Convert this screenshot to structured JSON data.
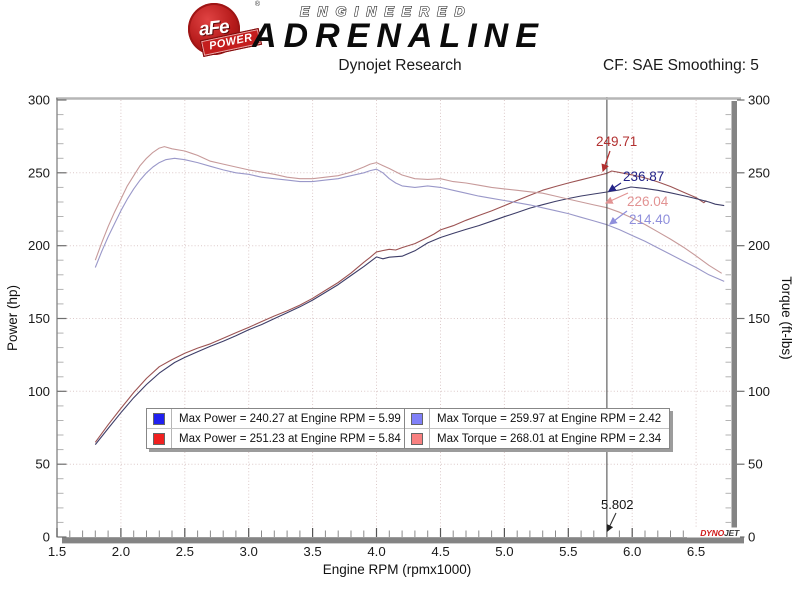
{
  "header": {
    "logo": {
      "afe": "aFe",
      "reg": "®",
      "power": "POWER"
    },
    "brand_top": "ENGINEERED",
    "brand_main": "ADRENALINE",
    "chart_title": "Dynojet Research",
    "smoothing": "CF: SAE Smoothing: 5"
  },
  "legend": {
    "power": [
      {
        "color": "#2020f0",
        "text": "Max Power = 240.27 at Engine RPM = 5.99"
      },
      {
        "color": "#f02020",
        "text": "Max Power = 251.23 at Engine RPM = 5.84"
      }
    ],
    "torque": [
      {
        "color": "#8080f8",
        "text": "Max Torque = 259.97 at Engine RPM = 2.42"
      },
      {
        "color": "#f88080",
        "text": "Max Torque = 268.01 at Engine RPM = 2.34"
      }
    ]
  },
  "footer_brand": {
    "dyno": "DYNO",
    "jet": "JET"
  },
  "chart_data": {
    "type": "line",
    "title": "Dynojet Research",
    "xlabel": "Engine RPM (rpmx1000)",
    "ylabel_left": "Power (hp)",
    "ylabel_right": "Torque (ft-lbs)",
    "x_range": [
      1.5,
      6.82
    ],
    "y_range": [
      0,
      300
    ],
    "x_major_ticks": [
      1.5,
      2.0,
      2.5,
      3.0,
      3.5,
      4.0,
      4.5,
      5.0,
      5.5,
      6.0,
      6.5
    ],
    "x_minor_step": 0.1,
    "y_major_step": 50,
    "y_minor_step": 10,
    "grid_style": "dotted",
    "legend_position": "bottom-center",
    "cursor": {
      "rpm": 5.802,
      "label": "5.802"
    },
    "annotations": [
      {
        "text": "249.71",
        "color": "#b23030",
        "value": 249.71
      },
      {
        "text": "236.87",
        "color": "#232388",
        "value": 236.87
      },
      {
        "text": "226.04",
        "color": "#e29393",
        "value": 226.04
      },
      {
        "text": "214.40",
        "color": "#8f8fdc",
        "value": 214.4
      }
    ],
    "series": [
      {
        "name": "power-red",
        "axis": "left",
        "color": "#9c5353",
        "max": {
          "value": 251.23,
          "rpm": 5.84
        },
        "points": [
          [
            1.8,
            65
          ],
          [
            1.9,
            77
          ],
          [
            2.0,
            88.3
          ],
          [
            2.1,
            99.2
          ],
          [
            2.2,
            108.9
          ],
          [
            2.3,
            116.9
          ],
          [
            2.4,
            121.8
          ],
          [
            2.5,
            126.1
          ],
          [
            2.6,
            129.7
          ],
          [
            2.7,
            132.6
          ],
          [
            2.8,
            136.5
          ],
          [
            2.9,
            140.2
          ],
          [
            3.0,
            143.9
          ],
          [
            3.1,
            147.9
          ],
          [
            3.2,
            151.7
          ],
          [
            3.3,
            155.2
          ],
          [
            3.4,
            159.2
          ],
          [
            3.5,
            163.9
          ],
          [
            3.6,
            169.3
          ],
          [
            3.7,
            174.7
          ],
          [
            3.8,
            181.2
          ],
          [
            3.9,
            188.6
          ],
          [
            3.95,
            192
          ],
          [
            4.0,
            195.7
          ],
          [
            4.1,
            197.5
          ],
          [
            4.15,
            197
          ],
          [
            4.2,
            198.7
          ],
          [
            4.3,
            201.4
          ],
          [
            4.4,
            205.7
          ],
          [
            4.45,
            208
          ],
          [
            4.5,
            210.8
          ],
          [
            4.6,
            213.7
          ],
          [
            4.7,
            217.4
          ],
          [
            4.8,
            220.7
          ],
          [
            4.9,
            223.9
          ],
          [
            5.0,
            227.5
          ],
          [
            5.1,
            231.1
          ],
          [
            5.2,
            234.6
          ],
          [
            5.3,
            238.1
          ],
          [
            5.4,
            240.6
          ],
          [
            5.5,
            243
          ],
          [
            5.6,
            245.2
          ],
          [
            5.7,
            247.4
          ],
          [
            5.802,
            249.71
          ],
          [
            5.84,
            251.23
          ],
          [
            5.9,
            250.3
          ],
          [
            6.0,
            248.6
          ],
          [
            6.1,
            246.5
          ],
          [
            6.2,
            243.8
          ],
          [
            6.3,
            240.6
          ],
          [
            6.4,
            236.8
          ],
          [
            6.5,
            233
          ],
          [
            6.56,
            229.5
          ],
          [
            6.58,
            231
          ]
        ]
      },
      {
        "name": "power-blue",
        "axis": "left",
        "color": "#3d3d68",
        "max": {
          "value": 240.27,
          "rpm": 5.99
        },
        "points": [
          [
            1.8,
            63.4
          ],
          [
            1.9,
            74.5
          ],
          [
            2.0,
            85.3
          ],
          [
            2.1,
            95.6
          ],
          [
            2.2,
            104.7
          ],
          [
            2.3,
            112.5
          ],
          [
            2.42,
            119.8
          ],
          [
            2.5,
            123.3
          ],
          [
            2.6,
            127.2
          ],
          [
            2.7,
            130.9
          ],
          [
            2.8,
            134.4
          ],
          [
            2.9,
            138.1
          ],
          [
            3.0,
            142.3
          ],
          [
            3.1,
            145.8
          ],
          [
            3.2,
            149.9
          ],
          [
            3.3,
            154
          ],
          [
            3.4,
            158
          ],
          [
            3.5,
            162.6
          ],
          [
            3.6,
            167.9
          ],
          [
            3.7,
            173.3
          ],
          [
            3.8,
            179.5
          ],
          [
            3.9,
            185.6
          ],
          [
            4.0,
            192.3
          ],
          [
            4.05,
            191
          ],
          [
            4.1,
            192.1
          ],
          [
            4.2,
            192.8
          ],
          [
            4.3,
            196.5
          ],
          [
            4.4,
            201.9
          ],
          [
            4.5,
            205.6
          ],
          [
            4.6,
            208.4
          ],
          [
            4.7,
            211.2
          ],
          [
            4.8,
            213.8
          ],
          [
            4.9,
            216.8
          ],
          [
            5.0,
            219.9
          ],
          [
            5.1,
            222.8
          ],
          [
            5.2,
            225.8
          ],
          [
            5.3,
            228.1
          ],
          [
            5.4,
            230.4
          ],
          [
            5.5,
            232.4
          ],
          [
            5.6,
            234.1
          ],
          [
            5.7,
            235.5
          ],
          [
            5.802,
            236.87
          ],
          [
            5.9,
            238.3
          ],
          [
            5.99,
            240.27
          ],
          [
            6.1,
            239.3
          ],
          [
            6.2,
            238
          ],
          [
            6.3,
            236.3
          ],
          [
            6.4,
            234.4
          ],
          [
            6.5,
            232.3
          ],
          [
            6.6,
            230
          ],
          [
            6.65,
            228.5
          ],
          [
            6.72,
            227.5
          ]
        ]
      },
      {
        "name": "torque-red",
        "axis": "right",
        "color": "#c79a9a",
        "max": {
          "value": 268.01,
          "rpm": 2.34
        },
        "points": [
          [
            1.8,
            190
          ],
          [
            1.85,
            202
          ],
          [
            1.9,
            213
          ],
          [
            1.95,
            223
          ],
          [
            2.0,
            232
          ],
          [
            2.05,
            241
          ],
          [
            2.1,
            248
          ],
          [
            2.15,
            255
          ],
          [
            2.2,
            260
          ],
          [
            2.25,
            264
          ],
          [
            2.3,
            267
          ],
          [
            2.34,
            268.01
          ],
          [
            2.4,
            266.5
          ],
          [
            2.5,
            265
          ],
          [
            2.55,
            263.5
          ],
          [
            2.6,
            262
          ],
          [
            2.7,
            258
          ],
          [
            2.8,
            256
          ],
          [
            2.9,
            254
          ],
          [
            3.0,
            252
          ],
          [
            3.1,
            250.5
          ],
          [
            3.2,
            249
          ],
          [
            3.3,
            247
          ],
          [
            3.4,
            246
          ],
          [
            3.5,
            246
          ],
          [
            3.6,
            247
          ],
          [
            3.7,
            248
          ],
          [
            3.8,
            250.5
          ],
          [
            3.9,
            254
          ],
          [
            3.95,
            256
          ],
          [
            4.0,
            257
          ],
          [
            4.05,
            255
          ],
          [
            4.1,
            253
          ],
          [
            4.2,
            248.5
          ],
          [
            4.3,
            246
          ],
          [
            4.4,
            245.5
          ],
          [
            4.5,
            246
          ],
          [
            4.6,
            244
          ],
          [
            4.7,
            243
          ],
          [
            4.8,
            241.5
          ],
          [
            4.9,
            240
          ],
          [
            5.0,
            239
          ],
          [
            5.1,
            238
          ],
          [
            5.2,
            237
          ],
          [
            5.3,
            236
          ],
          [
            5.4,
            234
          ],
          [
            5.5,
            232
          ],
          [
            5.6,
            230
          ],
          [
            5.7,
            228
          ],
          [
            5.802,
            226.04
          ],
          [
            5.9,
            223
          ],
          [
            6.0,
            219
          ],
          [
            6.1,
            214.5
          ],
          [
            6.2,
            209.5
          ],
          [
            6.3,
            204.5
          ],
          [
            6.4,
            199
          ],
          [
            6.5,
            193
          ],
          [
            6.6,
            186.5
          ],
          [
            6.7,
            181
          ]
        ]
      },
      {
        "name": "torque-blue",
        "axis": "right",
        "color": "#9a98c9",
        "max": {
          "value": 259.97,
          "rpm": 2.42
        },
        "points": [
          [
            1.8,
            185
          ],
          [
            1.85,
            196
          ],
          [
            1.9,
            206
          ],
          [
            1.95,
            215
          ],
          [
            2.0,
            224
          ],
          [
            2.05,
            232
          ],
          [
            2.1,
            239
          ],
          [
            2.15,
            245
          ],
          [
            2.2,
            250
          ],
          [
            2.25,
            254
          ],
          [
            2.3,
            257
          ],
          [
            2.35,
            259
          ],
          [
            2.42,
            259.97
          ],
          [
            2.5,
            259
          ],
          [
            2.6,
            257
          ],
          [
            2.7,
            254.5
          ],
          [
            2.8,
            252
          ],
          [
            2.9,
            250
          ],
          [
            3.0,
            249
          ],
          [
            3.1,
            247
          ],
          [
            3.2,
            246
          ],
          [
            3.3,
            245
          ],
          [
            3.4,
            244
          ],
          [
            3.5,
            244
          ],
          [
            3.6,
            245
          ],
          [
            3.7,
            246
          ],
          [
            3.8,
            248
          ],
          [
            3.9,
            250
          ],
          [
            3.95,
            251.5
          ],
          [
            4.0,
            252.5
          ],
          [
            4.05,
            250
          ],
          [
            4.1,
            246
          ],
          [
            4.15,
            243
          ],
          [
            4.2,
            241
          ],
          [
            4.3,
            240
          ],
          [
            4.4,
            241
          ],
          [
            4.5,
            240
          ],
          [
            4.6,
            238
          ],
          [
            4.7,
            236
          ],
          [
            4.8,
            234
          ],
          [
            4.9,
            232.5
          ],
          [
            5.0,
            231
          ],
          [
            5.1,
            229.5
          ],
          [
            5.2,
            228
          ],
          [
            5.3,
            226
          ],
          [
            5.4,
            224
          ],
          [
            5.5,
            222
          ],
          [
            5.6,
            219.5
          ],
          [
            5.7,
            217
          ],
          [
            5.802,
            214.4
          ],
          [
            5.9,
            211
          ],
          [
            6.0,
            207
          ],
          [
            6.1,
            203
          ],
          [
            6.2,
            198.5
          ],
          [
            6.3,
            194
          ],
          [
            6.4,
            189.5
          ],
          [
            6.5,
            185
          ],
          [
            6.6,
            180
          ],
          [
            6.72,
            175.5
          ]
        ]
      }
    ]
  }
}
